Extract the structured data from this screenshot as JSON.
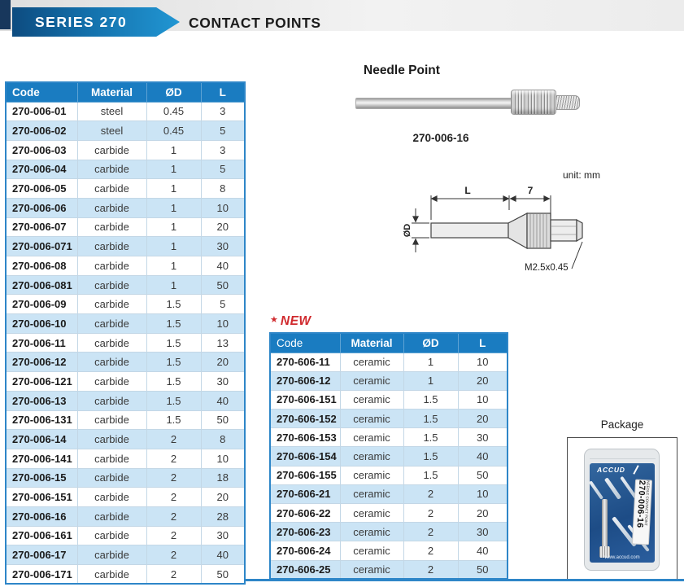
{
  "header": {
    "series_label": "SERIES 270",
    "title": "CONTACT POINTS"
  },
  "needle_point": {
    "title": "Needle Point",
    "code": "270-006-16"
  },
  "drawing": {
    "unit_label": "unit: mm",
    "dim_length": "L",
    "dim_collar": "7",
    "dim_diameter": "ØD",
    "thread_spec": "M2.5x0.45"
  },
  "main_table": {
    "columns": [
      "Code",
      "Material",
      "ØD",
      "L"
    ],
    "rows": [
      [
        "270-006-01",
        "steel",
        "0.45",
        "3"
      ],
      [
        "270-006-02",
        "steel",
        "0.45",
        "5"
      ],
      [
        "270-006-03",
        "carbide",
        "1",
        "3"
      ],
      [
        "270-006-04",
        "carbide",
        "1",
        "5"
      ],
      [
        "270-006-05",
        "carbide",
        "1",
        "8"
      ],
      [
        "270-006-06",
        "carbide",
        "1",
        "10"
      ],
      [
        "270-006-07",
        "carbide",
        "1",
        "20"
      ],
      [
        "270-006-071",
        "carbide",
        "1",
        "30"
      ],
      [
        "270-006-08",
        "carbide",
        "1",
        "40"
      ],
      [
        "270-006-081",
        "carbide",
        "1",
        "50"
      ],
      [
        "270-006-09",
        "carbide",
        "1.5",
        "5"
      ],
      [
        "270-006-10",
        "carbide",
        "1.5",
        "10"
      ],
      [
        "270-006-11",
        "carbide",
        "1.5",
        "13"
      ],
      [
        "270-006-12",
        "carbide",
        "1.5",
        "20"
      ],
      [
        "270-006-121",
        "carbide",
        "1.5",
        "30"
      ],
      [
        "270-006-13",
        "carbide",
        "1.5",
        "40"
      ],
      [
        "270-006-131",
        "carbide",
        "1.5",
        "50"
      ],
      [
        "270-006-14",
        "carbide",
        "2",
        "8"
      ],
      [
        "270-006-141",
        "carbide",
        "2",
        "10"
      ],
      [
        "270-006-15",
        "carbide",
        "2",
        "18"
      ],
      [
        "270-006-151",
        "carbide",
        "2",
        "20"
      ],
      [
        "270-006-16",
        "carbide",
        "2",
        "28"
      ],
      [
        "270-006-161",
        "carbide",
        "2",
        "30"
      ],
      [
        "270-006-17",
        "carbide",
        "2",
        "40"
      ],
      [
        "270-006-171",
        "carbide",
        "2",
        "50"
      ]
    ]
  },
  "new_table": {
    "star": "★",
    "new_label": "NEW",
    "columns": [
      "Code",
      "Material",
      "ØD",
      "L"
    ],
    "rows": [
      [
        "270-606-11",
        "ceramic",
        "1",
        "10"
      ],
      [
        "270-606-12",
        "ceramic",
        "1",
        "20"
      ],
      [
        "270-606-151",
        "ceramic",
        "1.5",
        "10"
      ],
      [
        "270-606-152",
        "ceramic",
        "1.5",
        "20"
      ],
      [
        "270-606-153",
        "ceramic",
        "1.5",
        "30"
      ],
      [
        "270-606-154",
        "ceramic",
        "1.5",
        "40"
      ],
      [
        "270-606-155",
        "ceramic",
        "1.5",
        "50"
      ],
      [
        "270-606-21",
        "ceramic",
        "2",
        "10"
      ],
      [
        "270-606-22",
        "ceramic",
        "2",
        "20"
      ],
      [
        "270-606-23",
        "ceramic",
        "2",
        "30"
      ],
      [
        "270-606-24",
        "ceramic",
        "2",
        "40"
      ],
      [
        "270-606-25",
        "ceramic",
        "2",
        "50"
      ]
    ]
  },
  "package": {
    "title": "Package",
    "brand": "ACCUD",
    "label_code": "270-006-16",
    "label_text": "NEEDLE CONTACT POINT",
    "website": "www.accud.com"
  },
  "colors": {
    "accent_blue": "#1a7cc1",
    "row_alt_blue": "#cbe4f5",
    "border_blue": "#2e86c8",
    "new_red": "#d02a2e",
    "banner_navy": "#18375c"
  }
}
